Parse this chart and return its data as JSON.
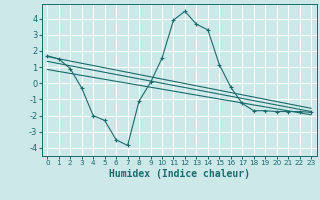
{
  "xlabel": "Humidex (Indice chaleur)",
  "bg_color": "#cde8e8",
  "grid_color": "#ffffff",
  "line_color": "#1a6b6b",
  "xlim": [
    -0.5,
    23.5
  ],
  "ylim": [
    -4.5,
    4.9
  ],
  "xticks": [
    0,
    1,
    2,
    3,
    4,
    5,
    6,
    7,
    8,
    9,
    10,
    11,
    12,
    13,
    14,
    15,
    16,
    17,
    18,
    19,
    20,
    21,
    22,
    23
  ],
  "yticks": [
    -4,
    -3,
    -2,
    -1,
    0,
    1,
    2,
    3,
    4
  ],
  "curve1_x": [
    0,
    1,
    2,
    3,
    4,
    5,
    6,
    7,
    8,
    9,
    10,
    11,
    12,
    13,
    14,
    15,
    16,
    17,
    18,
    19,
    20,
    21,
    22,
    23
  ],
  "curve1_y": [
    1.7,
    1.5,
    0.9,
    -0.3,
    -2.0,
    -2.3,
    -3.5,
    -3.85,
    -1.1,
    0.05,
    1.55,
    3.9,
    4.45,
    3.65,
    3.3,
    1.15,
    -0.25,
    -1.25,
    -1.7,
    -1.7,
    -1.75,
    -1.75,
    -1.75,
    -1.8
  ],
  "curve2_x": [
    0,
    23
  ],
  "curve2_y": [
    1.65,
    -1.55
  ],
  "curve3_x": [
    0,
    23
  ],
  "curve3_y": [
    1.35,
    -1.75
  ],
  "curve4_x": [
    0,
    23
  ],
  "curve4_y": [
    0.85,
    -1.95
  ]
}
